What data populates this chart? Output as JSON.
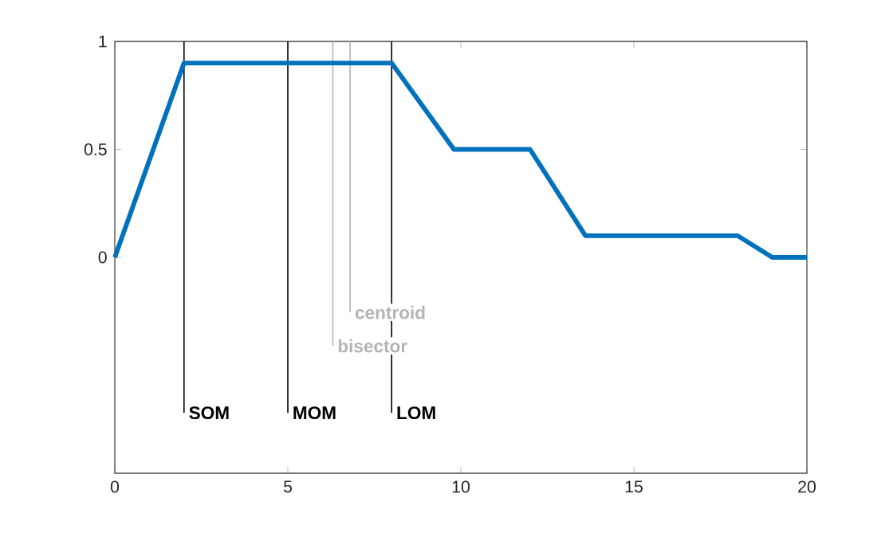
{
  "chart_data": {
    "type": "line",
    "x": [
      0,
      2,
      8,
      9.8,
      12,
      13.6,
      18,
      19,
      20
    ],
    "series": [
      {
        "color": "#0072bd",
        "values": [
          0,
          0.9,
          0.9,
          0.5,
          0.5,
          0.1,
          0.1,
          0,
          0
        ]
      }
    ],
    "xlim": [
      0,
      20
    ],
    "ylim": [
      -1,
      1
    ],
    "xticks": [
      0,
      5,
      10,
      15,
      20
    ],
    "yticks": [
      0,
      0.5,
      1
    ],
    "grid": false,
    "marker": "none",
    "line_style": "solid",
    "ref_lines": [
      {
        "axis": "x",
        "value": 2,
        "label": "SOM",
        "color": "#000000"
      },
      {
        "axis": "x",
        "value": 5,
        "label": "MOM",
        "color": "#000000"
      },
      {
        "axis": "x",
        "value": 8,
        "label": "LOM",
        "color": "#000000"
      },
      {
        "axis": "x",
        "value": 6.3,
        "label": "bisector",
        "color": "#b4b4b4"
      },
      {
        "axis": "x",
        "value": 6.8,
        "label": "centroid",
        "color": "#b4b4b4"
      }
    ]
  }
}
